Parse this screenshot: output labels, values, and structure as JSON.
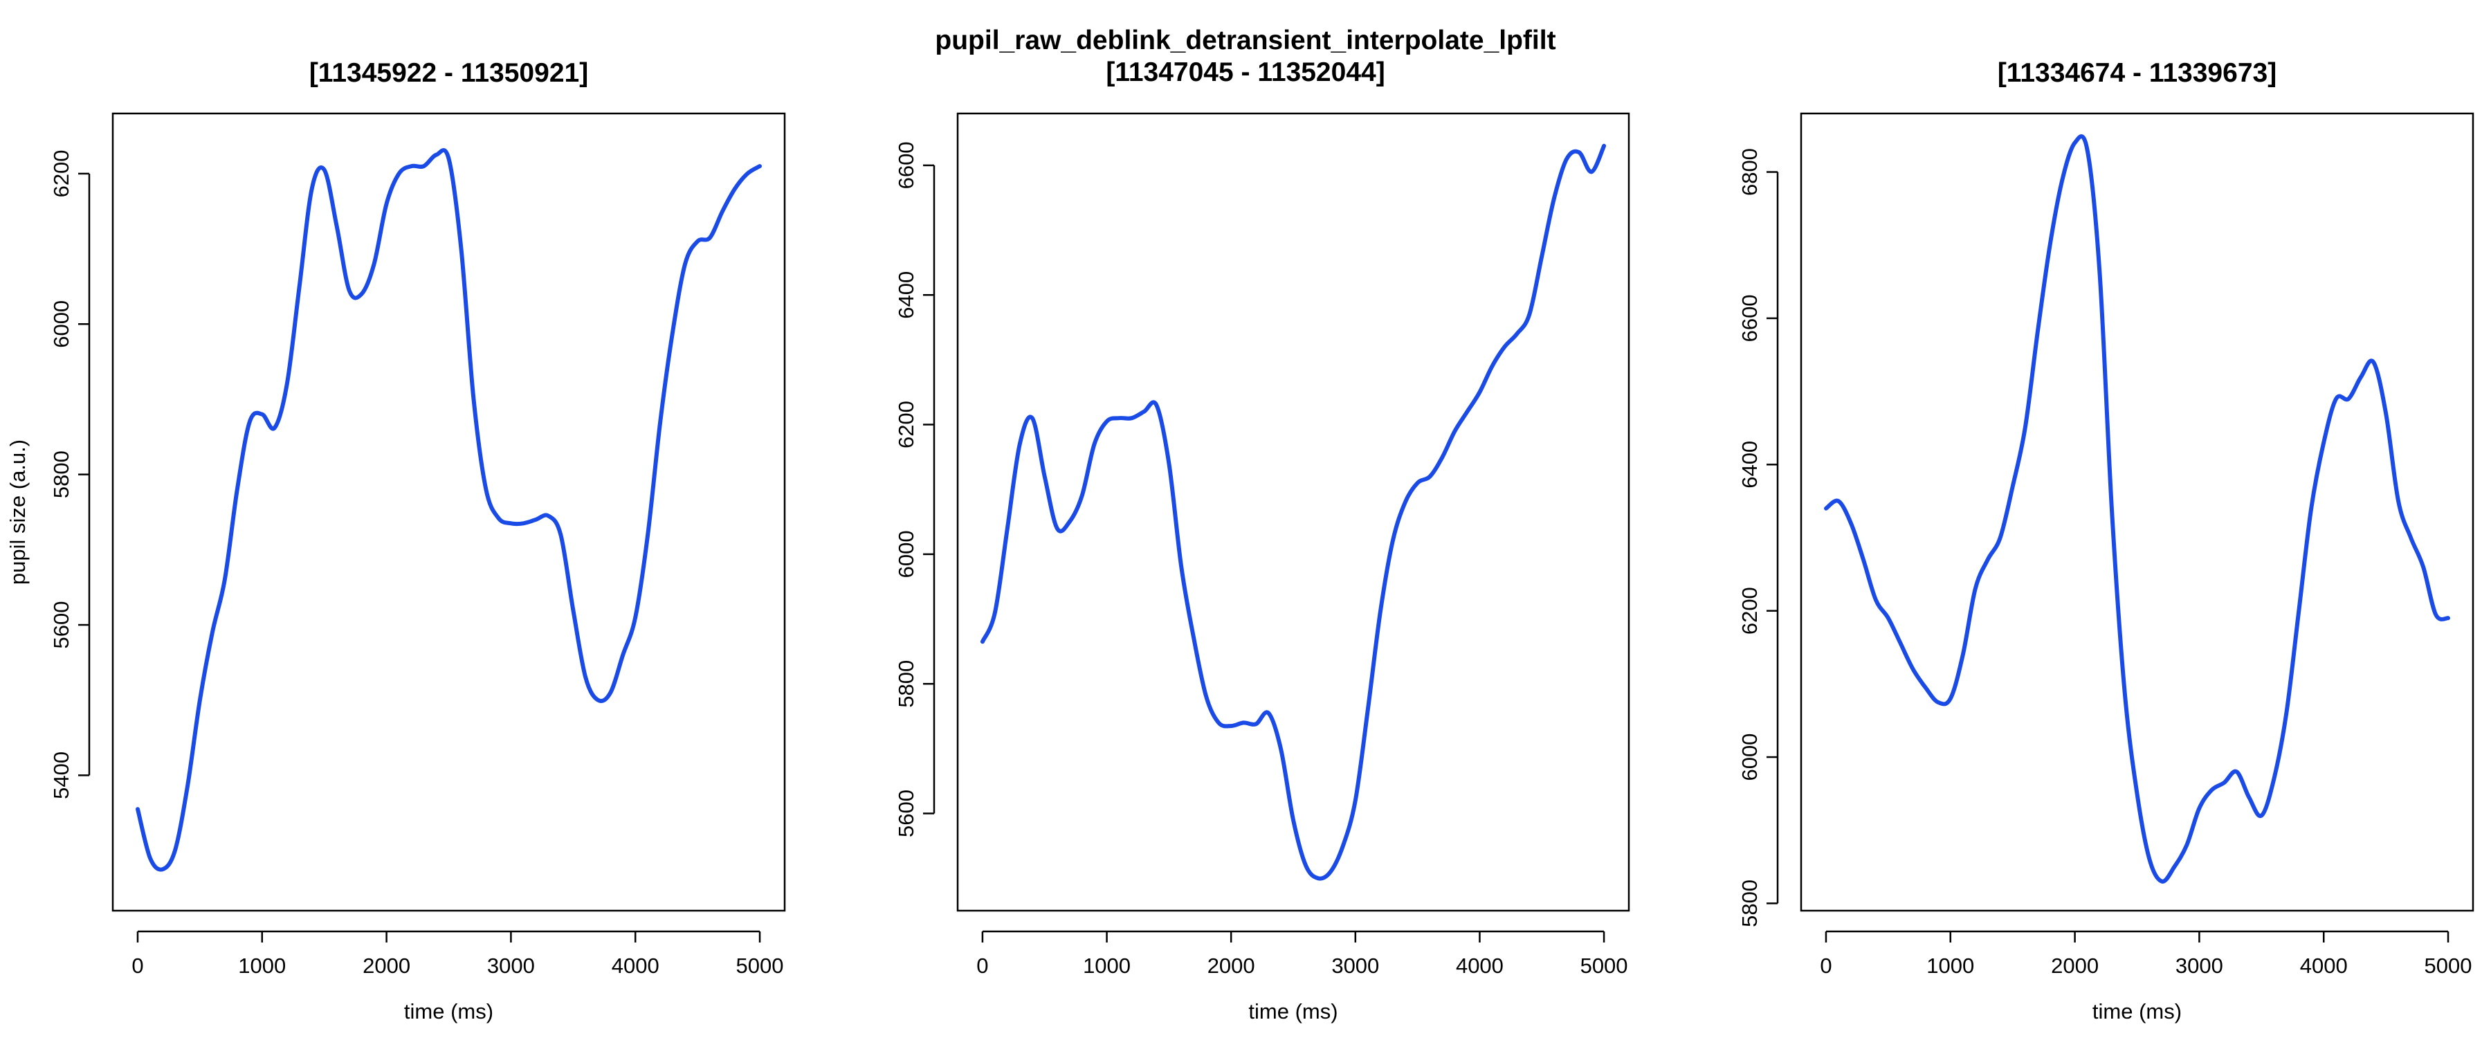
{
  "figure": {
    "suptitle_line1": "pupil_raw_deblink_detransient_interpolate_lpfilt",
    "series_color": "#1a4be6"
  },
  "chart_data": [
    {
      "type": "line",
      "title": "[11345922 - 11350921]",
      "xlabel": "time (ms)",
      "ylabel": "pupil size (a.u.)",
      "xlim": [
        -200,
        5200
      ],
      "ylim": [
        5220,
        6280
      ],
      "x_ticks": [
        0,
        1000,
        2000,
        3000,
        4000,
        5000
      ],
      "y_ticks": [
        5400,
        5600,
        5800,
        6000,
        6200
      ],
      "grid": false,
      "legend": "none",
      "series": [
        {
          "color": "#1a4be6",
          "x": [
            0,
            100,
            200,
            300,
            400,
            500,
            600,
            700,
            800,
            900,
            1000,
            1100,
            1200,
            1300,
            1400,
            1500,
            1600,
            1700,
            1800,
            1900,
            2000,
            2100,
            2200,
            2300,
            2400,
            2500,
            2600,
            2700,
            2800,
            2900,
            3000,
            3100,
            3200,
            3300,
            3400,
            3500,
            3600,
            3700,
            3800,
            3900,
            4000,
            4100,
            4200,
            4300,
            4400,
            4500,
            4600,
            4700,
            4800,
            4900,
            5000
          ],
          "y": [
            5355,
            5290,
            5275,
            5300,
            5385,
            5500,
            5590,
            5660,
            5780,
            5870,
            5880,
            5862,
            5920,
            6050,
            6180,
            6205,
            6130,
            6045,
            6040,
            6080,
            6160,
            6200,
            6210,
            6210,
            6225,
            6220,
            6100,
            5900,
            5780,
            5742,
            5735,
            5735,
            5740,
            5745,
            5720,
            5620,
            5530,
            5500,
            5510,
            5560,
            5610,
            5720,
            5870,
            5990,
            6080,
            6110,
            6115,
            6150,
            6180,
            6200,
            6210
          ]
        }
      ]
    },
    {
      "type": "line",
      "title": "[11347045 - 11352044]",
      "xlabel": "time (ms)",
      "ylabel": "",
      "xlim": [
        -200,
        5200
      ],
      "ylim": [
        5450,
        6680
      ],
      "x_ticks": [
        0,
        1000,
        2000,
        3000,
        4000,
        5000
      ],
      "y_ticks": [
        5600,
        5800,
        6000,
        6200,
        6400,
        6600
      ],
      "grid": false,
      "legend": "none",
      "series": [
        {
          "color": "#1a4be6",
          "x": [
            0,
            100,
            200,
            300,
            400,
            500,
            600,
            700,
            800,
            900,
            1000,
            1100,
            1200,
            1300,
            1400,
            1500,
            1600,
            1700,
            1800,
            1900,
            2000,
            2100,
            2200,
            2300,
            2400,
            2500,
            2600,
            2700,
            2800,
            2900,
            3000,
            3100,
            3200,
            3300,
            3400,
            3500,
            3600,
            3700,
            3800,
            3900,
            4000,
            4100,
            4200,
            4300,
            4400,
            4500,
            4600,
            4700,
            4800,
            4900,
            5000
          ],
          "y": [
            5865,
            5910,
            6040,
            6170,
            6210,
            6120,
            6040,
            6050,
            6090,
            6170,
            6205,
            6210,
            6210,
            6220,
            6230,
            6140,
            5980,
            5870,
            5780,
            5740,
            5735,
            5740,
            5738,
            5755,
            5700,
            5590,
            5520,
            5500,
            5510,
            5550,
            5620,
            5760,
            5910,
            6020,
            6080,
            6110,
            6120,
            6150,
            6190,
            6220,
            6250,
            6290,
            6320,
            6340,
            6370,
            6460,
            6550,
            6610,
            6620,
            6590,
            6630
          ]
        }
      ]
    },
    {
      "type": "line",
      "title": "[11334674 - 11339673]",
      "xlabel": "time (ms)",
      "ylabel": "",
      "xlim": [
        -200,
        5200
      ],
      "ylim": [
        5790,
        6880
      ],
      "x_ticks": [
        0,
        1000,
        2000,
        3000,
        4000,
        5000
      ],
      "y_ticks": [
        5800,
        6000,
        6200,
        6400,
        6600,
        6800
      ],
      "grid": false,
      "legend": "none",
      "series": [
        {
          "color": "#1a4be6",
          "x": [
            0,
            100,
            200,
            300,
            400,
            500,
            600,
            700,
            800,
            900,
            1000,
            1100,
            1200,
            1300,
            1400,
            1500,
            1600,
            1700,
            1800,
            1900,
            2000,
            2100,
            2200,
            2300,
            2400,
            2500,
            2600,
            2700,
            2800,
            2900,
            3000,
            3100,
            3200,
            3300,
            3400,
            3500,
            3600,
            3700,
            3800,
            3900,
            4000,
            4100,
            4200,
            4300,
            4400,
            4500,
            4600,
            4700,
            4800,
            4900,
            5000
          ],
          "y": [
            6340,
            6350,
            6320,
            6270,
            6215,
            6190,
            6155,
            6120,
            6095,
            6075,
            6080,
            6140,
            6230,
            6270,
            6300,
            6370,
            6450,
            6580,
            6700,
            6790,
            6840,
            6830,
            6660,
            6330,
            6090,
            5950,
            5860,
            5830,
            5850,
            5880,
            5930,
            5955,
            5965,
            5980,
            5945,
            5920,
            5970,
            6060,
            6200,
            6340,
            6430,
            6490,
            6490,
            6520,
            6540,
            6470,
            6350,
            6300,
            6260,
            6195,
            6190
          ]
        }
      ]
    }
  ]
}
